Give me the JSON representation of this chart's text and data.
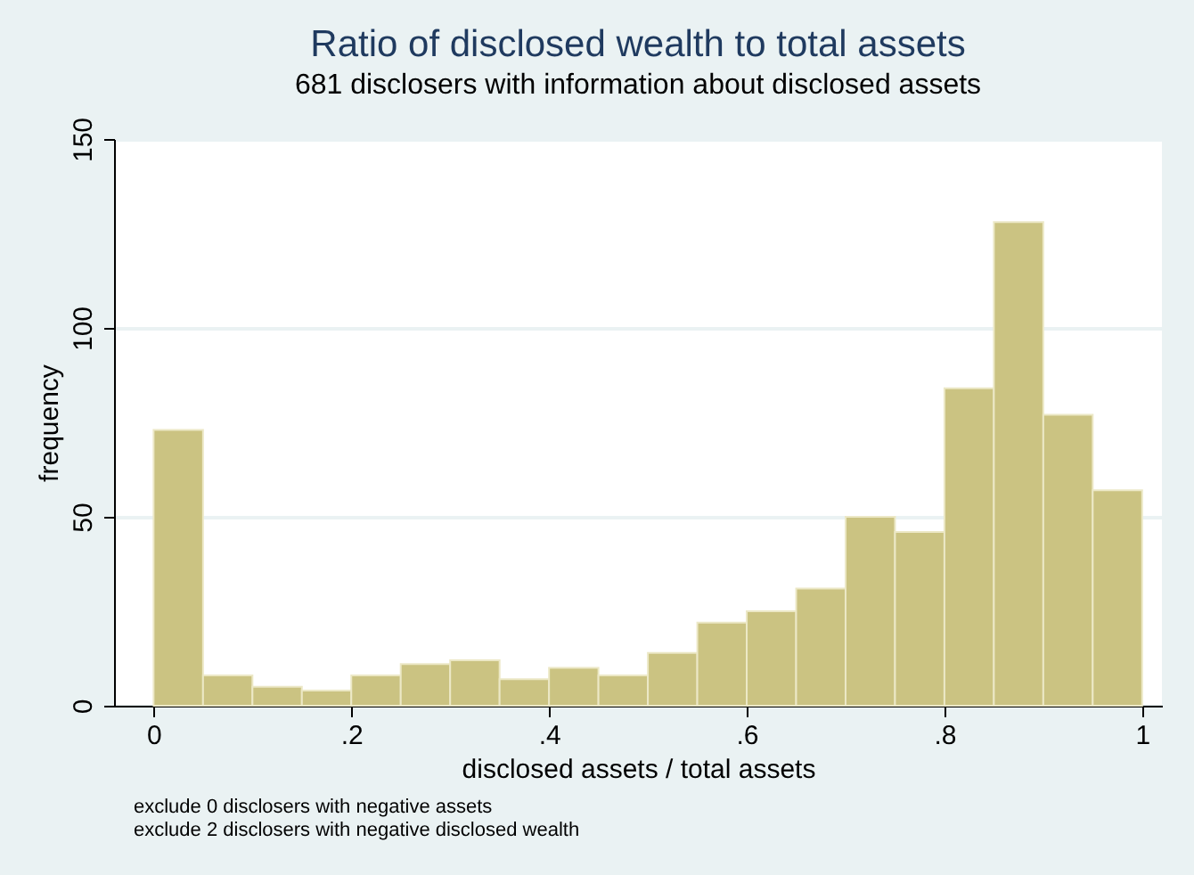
{
  "chart_data": {
    "type": "histogram",
    "title": "Ratio of disclosed wealth to total assets",
    "subtitle": "681 disclosers with information about disclosed assets",
    "xlabel": "disclosed assets / total assets",
    "ylabel": "frequency",
    "bins": [
      0,
      0.05,
      0.1,
      0.15,
      0.2,
      0.25,
      0.3,
      0.35,
      0.4,
      0.45,
      0.5,
      0.55,
      0.6,
      0.65,
      0.7,
      0.75,
      0.8,
      0.85,
      0.9,
      0.95,
      1
    ],
    "values": [
      73,
      8,
      5,
      4,
      8,
      11,
      12,
      7,
      10,
      8,
      14,
      22,
      25,
      31,
      50,
      46,
      84,
      128,
      77,
      57
    ],
    "color": "#cbc382",
    "xlim": [
      -0.04,
      1.02
    ],
    "ylim": [
      0,
      150
    ],
    "xticks": [
      0,
      {
        "value": 0.2,
        "label": ".2"
      },
      {
        "value": 0.4,
        "label": ".4"
      },
      {
        "value": 0.6,
        "label": ".6"
      },
      {
        "value": 0.8,
        "label": ".8"
      },
      1
    ],
    "yticks": [
      0,
      50,
      100,
      150
    ],
    "grid": "y",
    "annotations": [
      "exclude 0 disclosers with negative assets",
      "exclude 2 disclosers with negative disclosed wealth"
    ]
  }
}
